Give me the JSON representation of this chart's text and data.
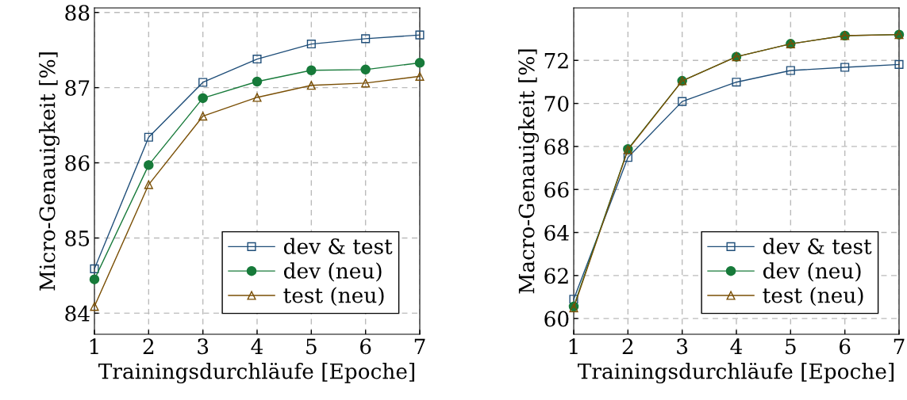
{
  "chart_data": [
    {
      "type": "line",
      "xlabel": "Trainingsdurchläufe [Epoche]",
      "ylabel": "Micro-Genauigkeit [%]",
      "x": [
        1,
        2,
        3,
        4,
        5,
        6,
        7
      ],
      "xlim": [
        1,
        7
      ],
      "xticks": [
        1,
        2,
        3,
        4,
        5,
        6,
        7
      ],
      "ylim": [
        83.72,
        88.06
      ],
      "yticks": [
        84,
        85,
        86,
        87,
        88
      ],
      "grid": true,
      "legend": "bottom right",
      "line_style": "solid",
      "series": [
        {
          "name": "dev & test",
          "color": "#1f4e79",
          "marker": "square",
          "values": [
            84.59,
            86.34,
            87.07,
            87.38,
            87.58,
            87.65,
            87.7
          ]
        },
        {
          "name": "dev (neu)",
          "color": "#177a3a",
          "marker": "circle",
          "values": [
            84.45,
            85.97,
            86.86,
            87.08,
            87.23,
            87.24,
            87.33
          ]
        },
        {
          "name": "test (neu)",
          "color": "#7a4f05",
          "marker": "triangle",
          "values": [
            84.09,
            85.71,
            86.62,
            86.87,
            87.03,
            87.06,
            87.15
          ]
        }
      ]
    },
    {
      "type": "line",
      "xlabel": "Trainingsdurchläufe [Epoche]",
      "ylabel": "Macro-Genauigkeit [%]",
      "x": [
        1,
        2,
        3,
        4,
        5,
        6,
        7
      ],
      "xlim": [
        1,
        7
      ],
      "xticks": [
        1,
        2,
        3,
        4,
        5,
        6,
        7
      ],
      "ylim": [
        59.27,
        74.44
      ],
      "yticks": [
        60,
        62,
        64,
        66,
        68,
        70,
        72
      ],
      "grid": true,
      "legend": "bottom right",
      "line_style": "solid",
      "series": [
        {
          "name": "dev & test",
          "color": "#1f4e79",
          "marker": "square",
          "values": [
            60.9,
            67.49,
            70.09,
            70.99,
            71.53,
            71.68,
            71.81
          ]
        },
        {
          "name": "dev (neu)",
          "color": "#177a3a",
          "marker": "circle",
          "values": [
            60.56,
            67.88,
            71.05,
            72.17,
            72.77,
            73.15,
            73.2
          ]
        },
        {
          "name": "test (neu)",
          "color": "#7a4f05",
          "marker": "triangle",
          "values": [
            60.5,
            67.85,
            71.05,
            72.17,
            72.77,
            73.15,
            73.2
          ]
        }
      ]
    }
  ]
}
